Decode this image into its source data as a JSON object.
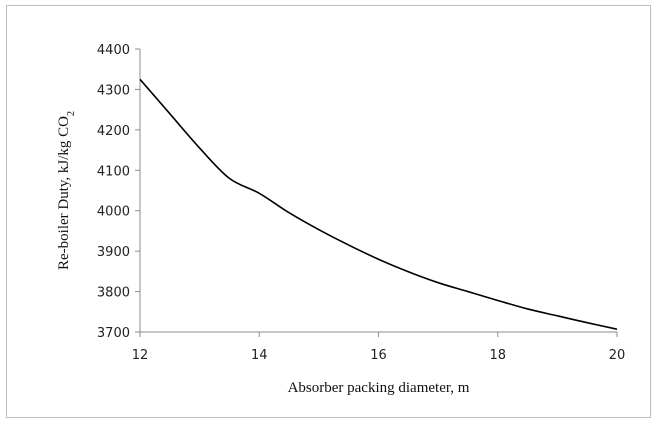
{
  "chart_data": {
    "type": "line",
    "title": "",
    "xlabel": "Absorber packing diameter, m",
    "ylabel": {
      "main": "Re-boiler Duty, kJ/kg CO",
      "subscript": "2"
    },
    "xlim": [
      12,
      20
    ],
    "ylim": [
      3700,
      4400
    ],
    "x_ticks": [
      "12",
      "14",
      "16",
      "18",
      "20"
    ],
    "y_ticks": [
      "3700",
      "3800",
      "3900",
      "4000",
      "4100",
      "4200",
      "4300",
      "4400"
    ],
    "grid": false,
    "series": [
      {
        "color": "#000000",
        "x": [
          12,
          12.5,
          13,
          13.5,
          14,
          14.5,
          15,
          15.5,
          16,
          16.5,
          17,
          17.5,
          18,
          18.5,
          19,
          19.5,
          20
        ],
        "y": [
          4325,
          4240,
          4155,
          4080,
          4043,
          3995,
          3953,
          3915,
          3880,
          3849,
          3822,
          3800,
          3778,
          3757,
          3740,
          3723,
          3707
        ]
      }
    ]
  }
}
